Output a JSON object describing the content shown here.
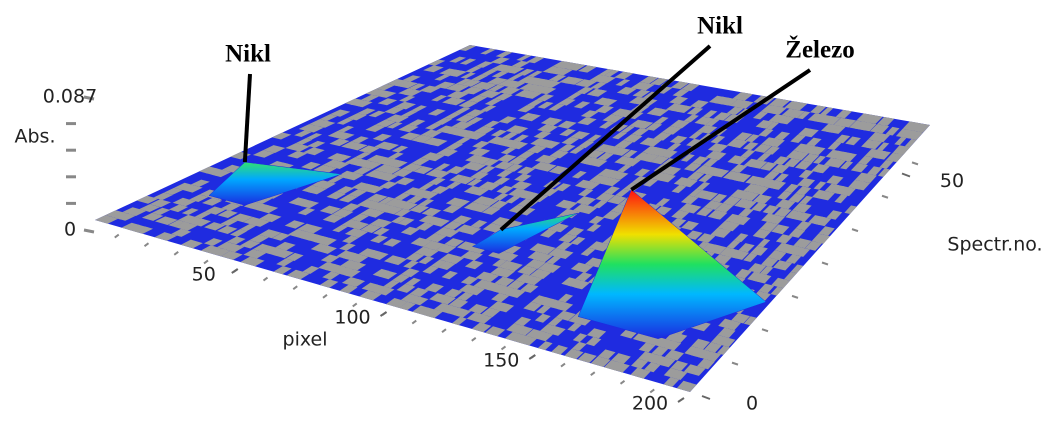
{
  "chart_data": {
    "type": "surface3d",
    "x_label": "pixel",
    "y_label": "Spectr.no.",
    "z_label": "Abs.",
    "xlim": [
      0,
      200
    ],
    "xticks": [
      50,
      100,
      150,
      200
    ],
    "ylim": [
      0,
      60
    ],
    "yticks": [
      0,
      50
    ],
    "zlim": [
      0,
      0.087
    ],
    "zticks": [
      0,
      0.087
    ],
    "surface_color": "#1f2be0",
    "noise_color": "#9c9c9c",
    "peaks": [
      {
        "label": "Nikl",
        "pixel": 20,
        "spectrum": 15,
        "value": 0.019
      },
      {
        "label": "Nikl",
        "pixel": 104,
        "spectrum": 19,
        "value": 0.006
      },
      {
        "label": "Železo",
        "pixel": 164,
        "spectrum": 11,
        "value": 0.082
      }
    ]
  }
}
